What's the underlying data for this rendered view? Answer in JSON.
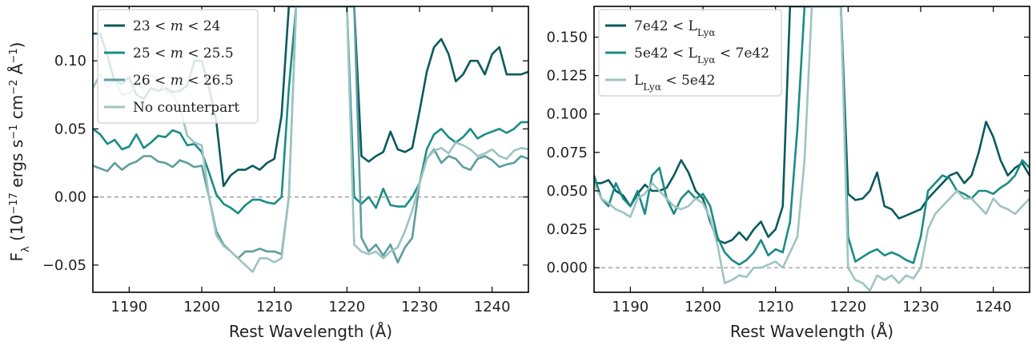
{
  "colors": {
    "dark": "#0b5a5d",
    "mid": "#1a8c85",
    "light1": "#5d9d9e",
    "light2": "#9dc4c2",
    "zero": "#888888"
  },
  "shared_ylabel_parts": [
    "F",
    "λ",
    " (10",
    "−17",
    " ergs s",
    "−1",
    " cm",
    "−2",
    " Å",
    "−1",
    ")"
  ],
  "chart_data": [
    {
      "type": "line",
      "xlabel": "Rest Wavelength (Å)",
      "xlim": [
        1185,
        1245
      ],
      "ylim": [
        -0.07,
        0.14
      ],
      "xticks": [
        1190,
        1200,
        1210,
        1220,
        1230,
        1240
      ],
      "yticks": [
        -0.05,
        0.0,
        0.05,
        0.1
      ],
      "ytick_labels": [
        "−0.05",
        "0.00",
        "0.05",
        "0.10"
      ],
      "zero_line": true,
      "legend_position": "top-left",
      "series": [
        {
          "name_parts": [
            "23 < ",
            "m",
            " < 24"
          ],
          "color": "#0b5a5d",
          "x": [
            1185,
            1186,
            1187,
            1188,
            1189,
            1190,
            1191,
            1192,
            1193,
            1194,
            1195,
            1196,
            1197,
            1198,
            1199,
            1200,
            1201,
            1202,
            1203,
            1204,
            1205,
            1206,
            1207,
            1208,
            1209,
            1210,
            1211,
            1212,
            1213,
            1221,
            1222,
            1223,
            1224,
            1225,
            1226,
            1227,
            1228,
            1229,
            1230,
            1231,
            1232,
            1233,
            1234,
            1235,
            1236,
            1237,
            1238,
            1239,
            1240,
            1241,
            1242,
            1243,
            1244,
            1245
          ],
          "y": [
            0.12,
            0.12,
            0.104,
            0.085,
            0.083,
            0.088,
            0.075,
            0.072,
            0.08,
            0.078,
            0.08,
            0.077,
            0.078,
            0.082,
            0.1,
            0.1,
            0.08,
            0.056,
            0.008,
            0.016,
            0.02,
            0.02,
            0.023,
            0.02,
            0.025,
            0.028,
            0.06,
            0.14,
            0.14,
            0.14,
            0.03,
            0.026,
            0.03,
            0.033,
            0.048,
            0.035,
            0.033,
            0.036,
            0.063,
            0.092,
            0.11,
            0.116,
            0.105,
            0.085,
            0.09,
            0.1,
            0.1,
            0.09,
            0.105,
            0.11,
            0.09,
            0.09,
            0.09,
            0.092
          ]
        },
        {
          "name_parts": [
            "25 < ",
            "m",
            " < 25.5"
          ],
          "color": "#1a8c85",
          "x": [
            1185,
            1186,
            1187,
            1188,
            1189,
            1190,
            1191,
            1192,
            1193,
            1194,
            1195,
            1196,
            1197,
            1198,
            1199,
            1200,
            1201,
            1202,
            1203,
            1204,
            1205,
            1206,
            1207,
            1208,
            1209,
            1210,
            1211,
            1212,
            1213,
            1220,
            1221,
            1222,
            1223,
            1224,
            1225,
            1226,
            1227,
            1228,
            1229,
            1230,
            1231,
            1232,
            1233,
            1234,
            1235,
            1236,
            1237,
            1238,
            1239,
            1240,
            1241,
            1242,
            1243,
            1244,
            1245
          ],
          "y": [
            0.05,
            0.046,
            0.039,
            0.042,
            0.035,
            0.037,
            0.046,
            0.036,
            0.04,
            0.045,
            0.044,
            0.049,
            0.047,
            0.038,
            0.039,
            0.033,
            0.018,
            0.002,
            -0.005,
            -0.008,
            -0.012,
            -0.006,
            -0.002,
            -0.002,
            -0.004,
            -0.005,
            0.0,
            0.08,
            0.14,
            0.14,
            0.0,
            -0.005,
            0.0,
            -0.008,
            0.006,
            -0.006,
            -0.007,
            -0.007,
            0.0,
            0.01,
            0.035,
            0.046,
            0.05,
            0.044,
            0.04,
            0.044,
            0.05,
            0.043,
            0.046,
            0.048,
            0.05,
            0.047,
            0.05,
            0.055,
            0.055
          ]
        },
        {
          "name_parts": [
            "26 < ",
            "m",
            " < 26.5"
          ],
          "color": "#5d9d9e",
          "x": [
            1185,
            1186,
            1187,
            1188,
            1189,
            1190,
            1191,
            1192,
            1193,
            1194,
            1195,
            1196,
            1197,
            1198,
            1199,
            1200,
            1201,
            1202,
            1203,
            1204,
            1205,
            1206,
            1207,
            1208,
            1209,
            1210,
            1211,
            1212,
            1213,
            1221,
            1222,
            1223,
            1224,
            1225,
            1226,
            1227,
            1228,
            1229,
            1230,
            1231,
            1232,
            1233,
            1234,
            1235,
            1236,
            1237,
            1238,
            1239,
            1240,
            1241,
            1242,
            1243,
            1244,
            1245
          ],
          "y": [
            0.023,
            0.021,
            0.019,
            0.025,
            0.02,
            0.024,
            0.026,
            0.03,
            0.03,
            0.026,
            0.025,
            0.022,
            0.027,
            0.025,
            0.022,
            0.023,
            0.0,
            -0.025,
            -0.035,
            -0.04,
            -0.045,
            -0.04,
            -0.04,
            -0.038,
            -0.04,
            -0.04,
            -0.042,
            0.0,
            0.14,
            0.14,
            -0.03,
            -0.04,
            -0.035,
            -0.043,
            -0.035,
            -0.048,
            -0.037,
            -0.03,
            0.01,
            0.028,
            0.035,
            0.025,
            0.03,
            0.028,
            0.022,
            0.02,
            0.028,
            0.03,
            0.027,
            0.022,
            0.024,
            0.025,
            0.03,
            0.028
          ]
        },
        {
          "name_parts": [
            "No counterpart",
            "",
            ""
          ],
          "color": "#9dc4c2",
          "x": [
            1185,
            1186,
            1187,
            1188,
            1189,
            1190,
            1191,
            1192,
            1193,
            1194,
            1195,
            1196,
            1197,
            1198,
            1199,
            1200,
            1201,
            1202,
            1203,
            1204,
            1205,
            1206,
            1207,
            1208,
            1209,
            1210,
            1211,
            1212,
            1213,
            1220,
            1221,
            1222,
            1223,
            1224,
            1225,
            1226,
            1227,
            1228,
            1229,
            1230,
            1231,
            1232,
            1233,
            1234,
            1235,
            1236,
            1237,
            1238,
            1239,
            1240,
            1241,
            1242,
            1243,
            1244,
            1245
          ],
          "y": [
            0.08,
            0.09,
            0.08,
            0.086,
            0.075,
            0.076,
            0.082,
            0.08,
            0.09,
            0.086,
            0.078,
            0.075,
            0.066,
            0.045,
            0.04,
            0.038,
            0.0,
            -0.028,
            -0.036,
            -0.04,
            -0.045,
            -0.05,
            -0.055,
            -0.045,
            -0.045,
            -0.048,
            -0.045,
            0.0,
            0.14,
            0.14,
            -0.035,
            -0.04,
            -0.042,
            -0.04,
            -0.045,
            -0.04,
            -0.037,
            -0.025,
            -0.01,
            0.01,
            0.028,
            0.034,
            0.036,
            0.032,
            0.04,
            0.038,
            0.035,
            0.03,
            0.032,
            0.035,
            0.03,
            0.028,
            0.034,
            0.036,
            0.035
          ]
        }
      ]
    },
    {
      "type": "line",
      "xlabel": "Rest Wavelength (Å)",
      "xlim": [
        1185,
        1245
      ],
      "ylim": [
        -0.016,
        0.17
      ],
      "xticks": [
        1190,
        1200,
        1210,
        1220,
        1230,
        1240
      ],
      "yticks": [
        0.0,
        0.025,
        0.05,
        0.075,
        0.1,
        0.125,
        0.15
      ],
      "ytick_labels": [
        "0.000",
        "0.025",
        "0.050",
        "0.075",
        "0.100",
        "0.125",
        "0.150"
      ],
      "zero_line": true,
      "legend_position": "top-left",
      "series": [
        {
          "name_parts": [
            "7e42 < L",
            "Lyα",
            ""
          ],
          "color": "#0b5a5d",
          "x": [
            1185,
            1186,
            1187,
            1188,
            1189,
            1190,
            1191,
            1192,
            1193,
            1194,
            1195,
            1196,
            1197,
            1198,
            1199,
            1200,
            1201,
            1202,
            1203,
            1204,
            1205,
            1206,
            1207,
            1208,
            1209,
            1210,
            1211,
            1212,
            1213,
            1219,
            1220,
            1221,
            1222,
            1223,
            1224,
            1225,
            1226,
            1227,
            1228,
            1229,
            1230,
            1231,
            1232,
            1233,
            1234,
            1235,
            1236,
            1237,
            1238,
            1239,
            1240,
            1241,
            1242,
            1243,
            1244,
            1245
          ],
          "y": [
            0.055,
            0.055,
            0.057,
            0.05,
            0.047,
            0.04,
            0.048,
            0.054,
            0.05,
            0.05,
            0.052,
            0.06,
            0.07,
            0.062,
            0.05,
            0.045,
            0.03,
            0.018,
            0.016,
            0.018,
            0.023,
            0.018,
            0.025,
            0.03,
            0.02,
            0.025,
            0.04,
            0.17,
            0.17,
            0.17,
            0.048,
            0.044,
            0.045,
            0.05,
            0.062,
            0.04,
            0.038,
            0.032,
            0.034,
            0.036,
            0.038,
            0.045,
            0.05,
            0.055,
            0.06,
            0.062,
            0.055,
            0.06,
            0.075,
            0.095,
            0.085,
            0.07,
            0.06,
            0.065,
            0.068,
            0.06
          ]
        },
        {
          "name_parts": [
            "5e42 < L",
            "Lyα",
            " < 7e42"
          ],
          "color": "#1a8c85",
          "x": [
            1185,
            1186,
            1187,
            1188,
            1189,
            1190,
            1191,
            1192,
            1193,
            1194,
            1195,
            1196,
            1197,
            1198,
            1199,
            1200,
            1201,
            1202,
            1203,
            1204,
            1205,
            1206,
            1207,
            1208,
            1209,
            1210,
            1211,
            1212,
            1213,
            1214,
            1219,
            1220,
            1221,
            1222,
            1223,
            1224,
            1225,
            1226,
            1227,
            1228,
            1229,
            1230,
            1231,
            1232,
            1233,
            1234,
            1235,
            1236,
            1237,
            1238,
            1239,
            1240,
            1241,
            1242,
            1243,
            1244,
            1245
          ],
          "y": [
            0.06,
            0.045,
            0.04,
            0.055,
            0.045,
            0.04,
            0.05,
            0.035,
            0.06,
            0.065,
            0.045,
            0.035,
            0.045,
            0.05,
            0.045,
            0.048,
            0.04,
            0.02,
            0.01,
            0.005,
            0.002,
            0.005,
            0.01,
            0.018,
            0.008,
            0.012,
            0.01,
            0.03,
            0.09,
            0.17,
            0.17,
            0.02,
            0.004,
            0.007,
            0.01,
            0.012,
            0.008,
            0.01,
            0.008,
            0.005,
            0.003,
            0.02,
            0.05,
            0.055,
            0.06,
            0.058,
            0.05,
            0.048,
            0.045,
            0.05,
            0.05,
            0.048,
            0.052,
            0.055,
            0.06,
            0.07,
            0.065
          ]
        },
        {
          "name_parts": [
            "L",
            "Lyα",
            " < 5e42"
          ],
          "color": "#9dc4c2",
          "x": [
            1185,
            1186,
            1187,
            1188,
            1189,
            1190,
            1191,
            1192,
            1193,
            1194,
            1195,
            1196,
            1197,
            1198,
            1199,
            1200,
            1201,
            1202,
            1203,
            1204,
            1205,
            1206,
            1207,
            1208,
            1209,
            1210,
            1211,
            1212,
            1213,
            1214,
            1215,
            1219,
            1220,
            1221,
            1222,
            1223,
            1224,
            1225,
            1226,
            1227,
            1228,
            1229,
            1230,
            1231,
            1232,
            1233,
            1234,
            1235,
            1236,
            1237,
            1238,
            1239,
            1240,
            1241,
            1242,
            1243,
            1244,
            1245
          ],
          "y": [
            0.055,
            0.045,
            0.042,
            0.038,
            0.036,
            0.033,
            0.045,
            0.048,
            0.055,
            0.05,
            0.045,
            0.04,
            0.038,
            0.04,
            0.045,
            0.042,
            0.032,
            0.015,
            -0.01,
            -0.008,
            -0.005,
            -0.006,
            0.0,
            0.0,
            0.002,
            0.004,
            0.0,
            0.01,
            0.02,
            0.07,
            0.17,
            0.17,
            0.0,
            -0.008,
            -0.01,
            -0.015,
            -0.005,
            -0.008,
            -0.005,
            -0.01,
            -0.005,
            -0.007,
            0.0,
            0.025,
            0.035,
            0.04,
            0.045,
            0.05,
            0.045,
            0.045,
            0.04,
            0.035,
            0.045,
            0.04,
            0.038,
            0.035,
            0.04,
            0.045
          ]
        }
      ]
    }
  ]
}
